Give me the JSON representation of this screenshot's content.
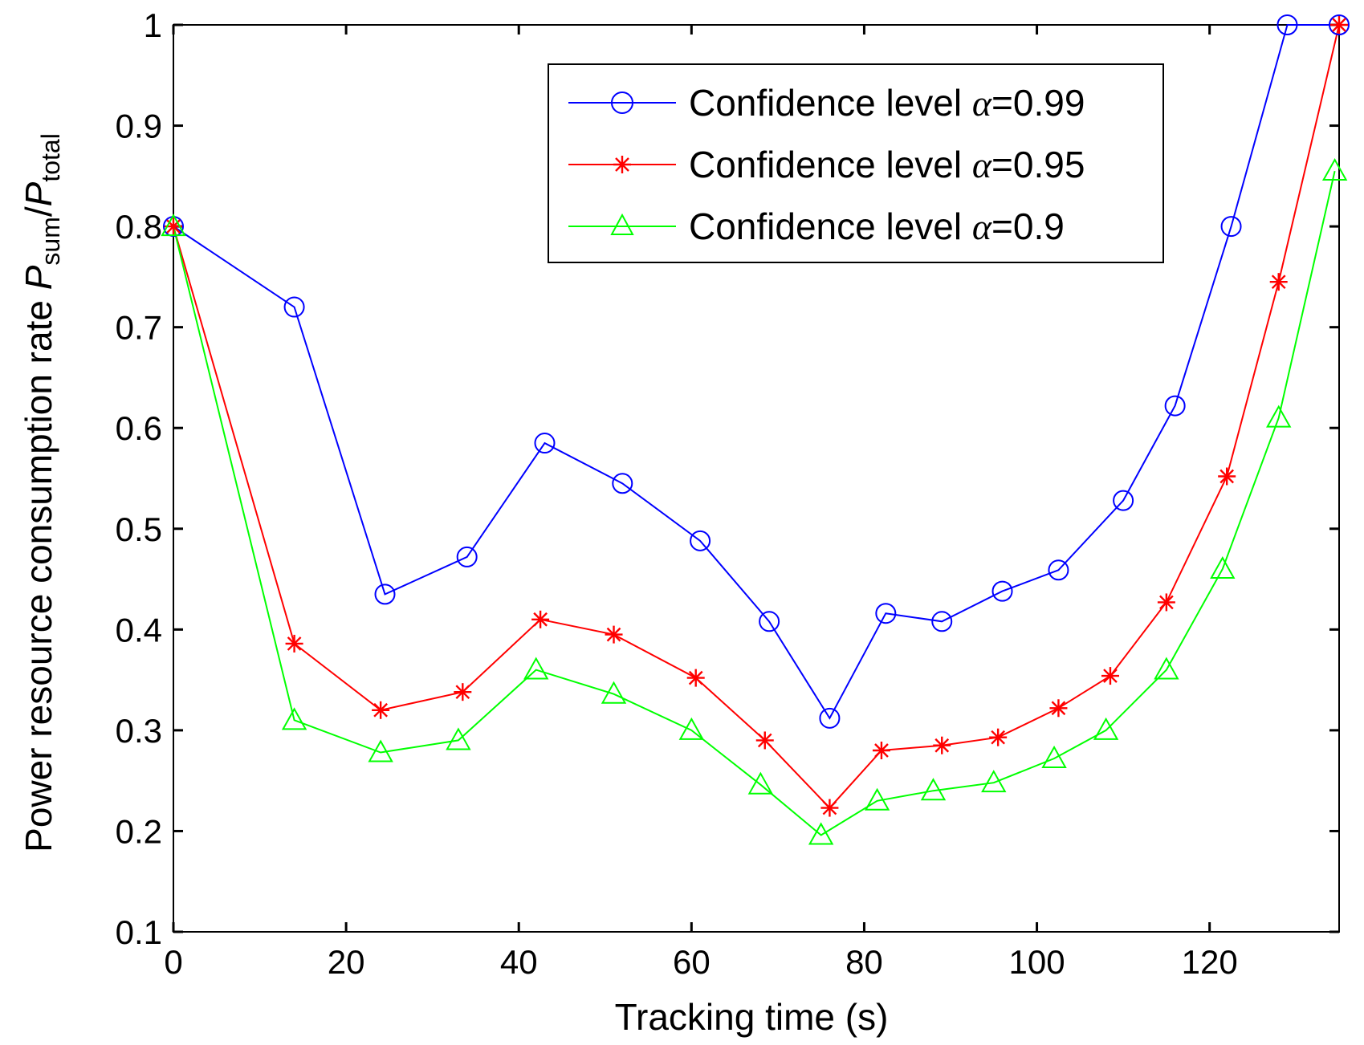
{
  "chart_data": {
    "type": "line",
    "xlabel": "Tracking time (s)",
    "ylabel": {
      "prefix": "Power resource consumption rate",
      "p1": "P",
      "sub1": "sum",
      "slash": "/",
      "p2": "P",
      "sub2": "total"
    },
    "xlim": [
      0,
      135
    ],
    "ylim": [
      0.1,
      1
    ],
    "xticks": [
      0,
      20,
      40,
      60,
      80,
      100,
      120
    ],
    "xtick_labels": [
      "0",
      "20",
      "40",
      "60",
      "80",
      "100",
      "120"
    ],
    "yticks": [
      0.1,
      0.2,
      0.3,
      0.4,
      0.5,
      0.6,
      0.7,
      0.8,
      0.9,
      1
    ],
    "ytick_labels": [
      "0.1",
      "0.2",
      "0.3",
      "0.4",
      "0.5",
      "0.6",
      "0.7",
      "0.8",
      "0.9",
      "1"
    ],
    "grid": false,
    "legend_position": "top-right",
    "series": [
      {
        "name": "Confidence level α=0.99",
        "label_prefix": "Confidence level ",
        "alpha_symbol": "α",
        "label_value": "=0.99",
        "color": "#0000ff",
        "marker": "circle",
        "x": [
          0,
          14,
          24.5,
          34,
          43,
          52,
          61,
          69,
          76,
          82.5,
          89,
          96,
          102.5,
          110,
          116,
          122.5,
          129,
          135
        ],
        "y": [
          0.8,
          0.72,
          0.435,
          0.472,
          0.585,
          0.545,
          0.488,
          0.408,
          0.312,
          0.416,
          0.408,
          0.438,
          0.459,
          0.528,
          0.622,
          0.8,
          1.0,
          1.0
        ]
      },
      {
        "name": "Confidence level α=0.95",
        "label_prefix": "Confidence level ",
        "alpha_symbol": "α",
        "label_value": "=0.95",
        "color": "#ff0000",
        "marker": "star",
        "x": [
          0,
          14,
          24,
          33.5,
          42.5,
          51,
          60.5,
          68.5,
          76,
          82,
          89,
          95.5,
          102.5,
          108.5,
          115,
          122,
          128,
          135
        ],
        "y": [
          0.8,
          0.386,
          0.32,
          0.338,
          0.41,
          0.395,
          0.352,
          0.29,
          0.223,
          0.28,
          0.285,
          0.293,
          0.322,
          0.354,
          0.427,
          0.552,
          0.745,
          1.0
        ]
      },
      {
        "name": "Confidence level α=0.9",
        "label_prefix": "Confidence level ",
        "alpha_symbol": "α",
        "label_value": "=0.9",
        "color": "#00ff00",
        "marker": "triangle",
        "x": [
          0,
          14,
          24,
          33,
          42,
          51,
          60,
          68,
          75,
          81.5,
          88,
          95,
          102,
          108,
          115,
          121.5,
          128,
          134.5
        ],
        "y": [
          0.8,
          0.31,
          0.278,
          0.29,
          0.36,
          0.336,
          0.3,
          0.246,
          0.196,
          0.23,
          0.24,
          0.248,
          0.272,
          0.3,
          0.36,
          0.46,
          0.61,
          0.855
        ]
      }
    ]
  }
}
